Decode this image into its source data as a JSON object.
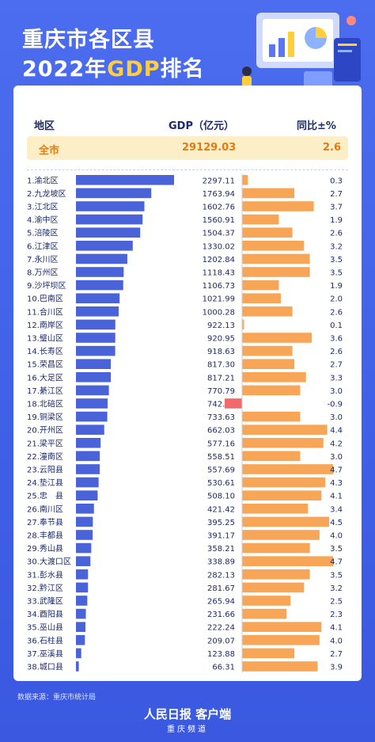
{
  "header": {
    "title_line1": "重庆市各区县",
    "title_year": "2022年",
    "title_highlight": "GDP",
    "title_suffix": "排名"
  },
  "table_header": {
    "region": "地区",
    "gdp": "GDP（亿元）",
    "growth": "同比±%"
  },
  "total_row": {
    "label": "全市",
    "gdp": "29129.03",
    "growth": "2.6"
  },
  "footer": {
    "source": "数据来源：重庆市统计局",
    "logo": "人民日报 客户端",
    "channel": "重庆频道"
  },
  "colors": {
    "gdp_bar": "#4b63d8",
    "growth_bar": "#f7a556",
    "negative_bar": "#ef6b6b",
    "accent": "#ffcf3a",
    "background": "#4564e8"
  },
  "chart_data": {
    "type": "bar",
    "categories": [
      "1.渝北区",
      "2.九龙坡区",
      "3.江北区",
      "4.渝中区",
      "5.涪陵区",
      "6.江津区",
      "7.永川区",
      "8.万州区",
      "9.沙坪坝区",
      "10.巴南区",
      "11.合川区",
      "12.南岸区",
      "13.璧山区",
      "14.长寿区",
      "15.荣昌区",
      "16.大足区",
      "17.綦江区",
      "18.北碚区",
      "19.铜梁区",
      "20.开州区",
      "21.梁平区",
      "22.潼南区",
      "23.云阳县",
      "24.垫江县",
      "25.忠　县",
      "26.南川区",
      "27.奉节县",
      "28.丰都县",
      "29.秀山县",
      "30.大渡口区",
      "31.彭水县",
      "32.黔江区",
      "33.武隆区",
      "34.酉阳县",
      "35.巫山县",
      "36.石柱县",
      "37.巫溪县",
      "38.城口县"
    ],
    "gdp": [
      "2297.11",
      "1763.94",
      "1602.76",
      "1560.91",
      "1504.37",
      "1330.02",
      "1202.84",
      "1118.43",
      "1106.73",
      "1021.99",
      "1000.28",
      "922.13",
      "920.95",
      "918.63",
      "817.30",
      "817.21",
      "770.79",
      "742.01",
      "733.63",
      "662.03",
      "577.16",
      "558.51",
      "557.69",
      "530.61",
      "508.10",
      "421.42",
      "395.25",
      "391.17",
      "358.21",
      "338.89",
      "282.13",
      "281.67",
      "265.94",
      "231.66",
      "222.24",
      "209.07",
      "123.88",
      "66.31"
    ],
    "growth": [
      "0.3",
      "2.7",
      "3.7",
      "1.9",
      "2.6",
      "3.2",
      "3.5",
      "3.5",
      "1.9",
      "2.0",
      "2.6",
      "0.1",
      "3.6",
      "2.6",
      "2.7",
      "3.3",
      "3.0",
      "-0.9",
      "3.0",
      "4.4",
      "4.2",
      "3.0",
      "4.7",
      "4.3",
      "4.1",
      "3.4",
      "4.5",
      "4.0",
      "3.5",
      "4.7",
      "3.5",
      "3.2",
      "2.5",
      "2.3",
      "4.1",
      "4.0",
      "2.7",
      "3.9"
    ],
    "gdp_max": 2297.11,
    "growth_max": 4.7
  }
}
